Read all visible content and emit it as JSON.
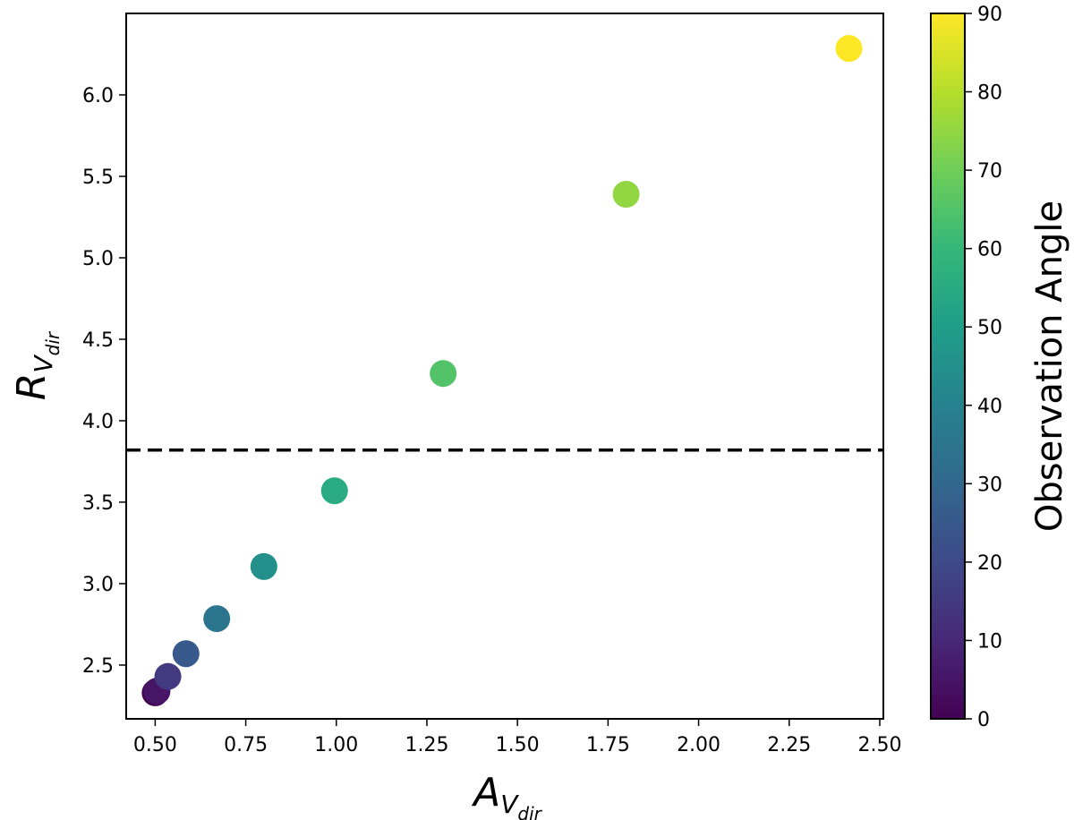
{
  "chart_data": {
    "type": "scatter",
    "title": "",
    "xlabel": {
      "main": "A",
      "sub1": "V",
      "sub2": "dir"
    },
    "ylabel": {
      "main": "R",
      "sub1": "V",
      "sub2": "dir"
    },
    "xlim": [
      0.42,
      2.51
    ],
    "ylim": [
      2.17,
      6.5
    ],
    "xticks": [
      0.5,
      0.75,
      1.0,
      1.25,
      1.5,
      1.75,
      2.0,
      2.25,
      2.5
    ],
    "xtick_labels": [
      "0.50",
      "0.75",
      "1.00",
      "1.25",
      "1.50",
      "1.75",
      "2.00",
      "2.25",
      "2.50"
    ],
    "yticks": [
      2.5,
      3.0,
      3.5,
      4.0,
      4.5,
      5.0,
      5.5,
      6.0
    ],
    "ytick_labels": [
      "2.5",
      "3.0",
      "3.5",
      "4.0",
      "4.5",
      "5.0",
      "5.5",
      "6.0"
    ],
    "grid": false,
    "reference_line": {
      "y": 3.82,
      "style": "dashed",
      "color": "#000000"
    },
    "points": [
      {
        "x": 0.5,
        "y": 2.33,
        "angle": 0
      },
      {
        "x": 0.505,
        "y": 2.34,
        "angle": 5
      },
      {
        "x": 0.535,
        "y": 2.43,
        "angle": 15
      },
      {
        "x": 0.585,
        "y": 2.57,
        "angle": 25
      },
      {
        "x": 0.67,
        "y": 2.785,
        "angle": 35
      },
      {
        "x": 0.8,
        "y": 3.105,
        "angle": 45
      },
      {
        "x": 0.995,
        "y": 3.57,
        "angle": 55
      },
      {
        "x": 1.295,
        "y": 4.29,
        "angle": 65
      },
      {
        "x": 1.8,
        "y": 5.39,
        "angle": 75
      },
      {
        "x": 2.415,
        "y": 6.285,
        "angle": 90
      }
    ],
    "colorbar": {
      "label": "Observation Angle",
      "range": [
        0,
        90
      ],
      "ticks": [
        0,
        10,
        20,
        30,
        40,
        50,
        60,
        70,
        80,
        90
      ],
      "colormap": "viridis",
      "colors": [
        "#440154",
        "#482878",
        "#3e4989",
        "#31688e",
        "#26828e",
        "#1f9e89",
        "#35b779",
        "#6ece58",
        "#b5de2b",
        "#fde725"
      ]
    }
  }
}
